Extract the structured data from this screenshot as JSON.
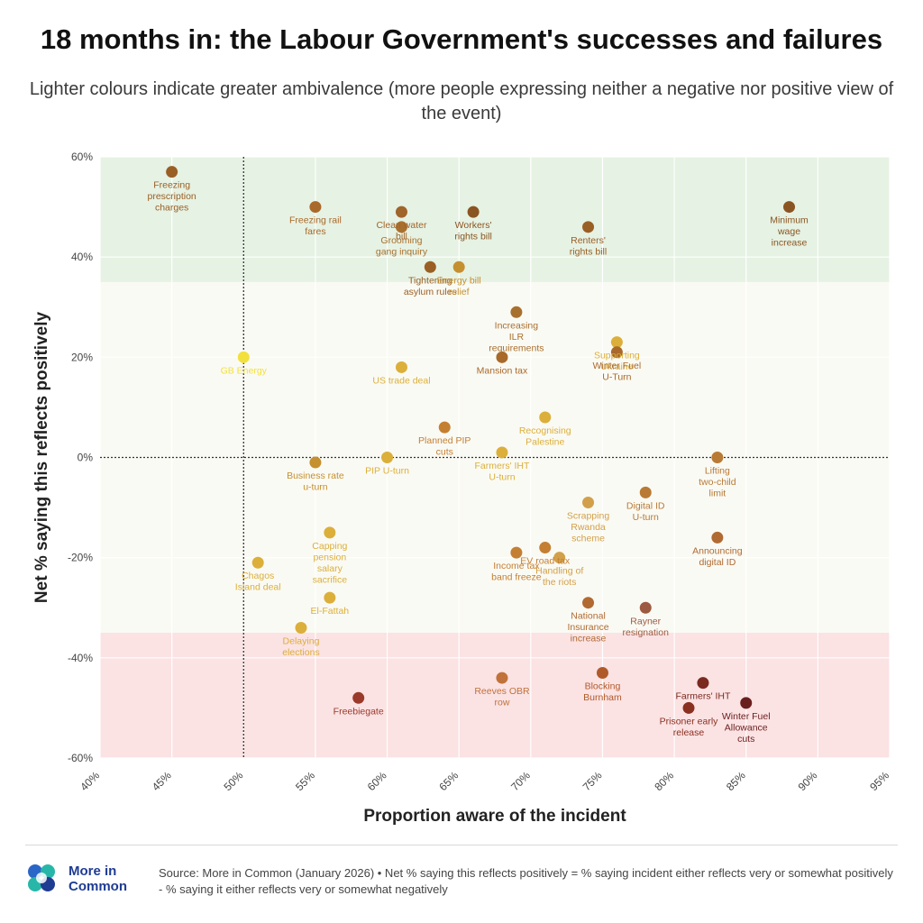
{
  "header": {
    "title": "18 months in: the Labour Government's successes and failures",
    "subtitle": "Lighter colours indicate greater ambivalence (more people expressing neither a negative nor positive view of the event)"
  },
  "footer": {
    "logo_text_line1": "More in",
    "logo_text_line2": "Common",
    "source": "Source: More in Common (January 2026) • Net % saying this reflects positively = % saying incident either reflects very or somewhat positively - % saying it either reflects very or somewhat negatively"
  },
  "colors": {
    "positive_band": "#e6f2e3",
    "neutral_band": "#fafaf4",
    "negative_band": "#fbe2e3",
    "brand": "#1f3c93"
  },
  "chart_data": {
    "type": "scatter",
    "xlabel": "Proportion aware of the incident",
    "ylabel": "Net % saying this reflects positively",
    "xlim": [
      40,
      95
    ],
    "ylim": [
      -60,
      60
    ],
    "x_ticks": [
      "40%",
      "45%",
      "50%",
      "55%",
      "60%",
      "65%",
      "70%",
      "75%",
      "80%",
      "85%",
      "90%",
      "95%"
    ],
    "y_ticks": [
      "60%",
      "40%",
      "20%",
      "0%",
      "-20%",
      "-40%",
      "-60%"
    ],
    "bands": [
      {
        "name": "positive",
        "from": 35,
        "to": 60
      },
      {
        "name": "neutral",
        "from": -35,
        "to": 35
      },
      {
        "name": "negative",
        "from": -60,
        "to": -35
      }
    ],
    "reference_lines": {
      "x": 50,
      "y": 0
    },
    "grid": true,
    "points": [
      {
        "label": "Freezing prescription charges",
        "lines": [
          "Freezing",
          "prescription",
          "charges"
        ],
        "x": 45,
        "y": 57,
        "color": "#9a5f25"
      },
      {
        "label": "Freezing rail fares",
        "lines": [
          "Freezing rail",
          "fares"
        ],
        "x": 55,
        "y": 50,
        "color": "#a8692a"
      },
      {
        "label": "Clean water bill",
        "lines": [
          "Clean water",
          "bill"
        ],
        "x": 61,
        "y": 49,
        "color": "#a0652a"
      },
      {
        "label": "Grooming gang inquiry",
        "lines": [
          "Grooming",
          "gang inquiry"
        ],
        "x": 61,
        "y": 46,
        "color": "#a8702e"
      },
      {
        "label": "Workers' rights bill",
        "lines": [
          "Workers'",
          "rights bill"
        ],
        "x": 66,
        "y": 49,
        "color": "#8a5522"
      },
      {
        "label": "Renters' rights bill",
        "lines": [
          "Renters'",
          "rights bill"
        ],
        "x": 74,
        "y": 46,
        "color": "#9a5f25"
      },
      {
        "label": "Minimum wage increase",
        "lines": [
          "Minimum",
          "wage",
          "increase"
        ],
        "x": 88,
        "y": 50,
        "color": "#8a5522"
      },
      {
        "label": "Tightening asylum rules",
        "lines": [
          "Tightening",
          "asylum rules"
        ],
        "x": 63,
        "y": 38,
        "color": "#9a5f25"
      },
      {
        "label": "Energy bill relief",
        "lines": [
          "Energy bill",
          "relief"
        ],
        "x": 65,
        "y": 38,
        "color": "#c49030"
      },
      {
        "label": "Increasing ILR requirements",
        "lines": [
          "Increasing",
          "ILR",
          "requirements"
        ],
        "x": 69,
        "y": 29,
        "color": "#a8702e"
      },
      {
        "label": "Mansion tax",
        "lines": [
          "Mansion tax"
        ],
        "x": 68,
        "y": 20,
        "color": "#a8692a"
      },
      {
        "label": "Supporting Ukraine",
        "lines": [
          "Supporting",
          "Ukraine"
        ],
        "x": 76,
        "y": 23,
        "color": "#dbaf3a"
      },
      {
        "label": "Winter Fuel U-Turn",
        "lines": [
          "Winter Fuel",
          "U-Turn"
        ],
        "x": 76,
        "y": 21,
        "color": "#a8692a"
      },
      {
        "label": "GB Energy",
        "lines": [
          "GB Energy"
        ],
        "x": 50,
        "y": 20,
        "color": "#f2e03c"
      },
      {
        "label": "US trade deal",
        "lines": [
          "US trade deal"
        ],
        "x": 61,
        "y": 18,
        "color": "#dbaf3a"
      },
      {
        "label": "Planned PIP cuts",
        "lines": [
          "Planned PIP",
          "cuts"
        ],
        "x": 64,
        "y": 6,
        "color": "#c47f33"
      },
      {
        "label": "Recognising Palestine",
        "lines": [
          "Recognising",
          "Palestine"
        ],
        "x": 71,
        "y": 8,
        "color": "#dbaf3a"
      },
      {
        "label": "Farmers' IHT U-turn",
        "lines": [
          "Farmers' IHT",
          "U-turn"
        ],
        "x": 68,
        "y": 1,
        "color": "#dbaf3a"
      },
      {
        "label": "Business rate u-turn",
        "lines": [
          "Business rate",
          "u-turn"
        ],
        "x": 55,
        "y": -1,
        "color": "#c49030"
      },
      {
        "label": "PIP U-turn",
        "lines": [
          "PIP U-turn"
        ],
        "x": 60,
        "y": 0,
        "color": "#dbaf3a"
      },
      {
        "label": "Lifting two-child limit",
        "lines": [
          "Lifting",
          "two-child",
          "limit"
        ],
        "x": 83,
        "y": 0,
        "color": "#b87a35"
      },
      {
        "label": "Scrapping Rwanda scheme",
        "lines": [
          "Scrapping",
          "Rwanda",
          "scheme"
        ],
        "x": 74,
        "y": -9,
        "color": "#d2a04a"
      },
      {
        "label": "Digital ID U-turn",
        "lines": [
          "Digital ID",
          "U-turn"
        ],
        "x": 78,
        "y": -7,
        "color": "#b87a35"
      },
      {
        "label": "Capping pension salary sacrifice",
        "lines": [
          "Capping",
          "pension",
          "salary",
          "sacrifice"
        ],
        "x": 56,
        "y": -15,
        "color": "#dbaf3a"
      },
      {
        "label": "Chagos Island deal",
        "lines": [
          "Chagos",
          "Island deal"
        ],
        "x": 51,
        "y": -21,
        "color": "#dbaf3a"
      },
      {
        "label": "Income tax band freeze",
        "lines": [
          "Income tax",
          "band freeze"
        ],
        "x": 69,
        "y": -19,
        "color": "#c47f33"
      },
      {
        "label": "EV road tax",
        "lines": [
          "EV road tax"
        ],
        "x": 71,
        "y": -18,
        "color": "#c47f33"
      },
      {
        "label": "Handling of the riots",
        "lines": [
          "Handling of",
          "the riots"
        ],
        "x": 72,
        "y": -20,
        "color": "#d2a04a"
      },
      {
        "label": "Announcing digital ID",
        "lines": [
          "Announcing",
          "digital ID"
        ],
        "x": 83,
        "y": -16,
        "color": "#b06a32"
      },
      {
        "label": "El-Fattah",
        "lines": [
          "El-Fattah"
        ],
        "x": 56,
        "y": -28,
        "color": "#dbaf3a"
      },
      {
        "label": "National Insurance increase",
        "lines": [
          "National",
          "Insurance",
          "increase"
        ],
        "x": 74,
        "y": -29,
        "color": "#b06a32"
      },
      {
        "label": "Rayner resignation",
        "lines": [
          "Rayner",
          "resignation"
        ],
        "x": 78,
        "y": -30,
        "color": "#9c5a40"
      },
      {
        "label": "Delaying elections",
        "lines": [
          "Delaying",
          "elections"
        ],
        "x": 54,
        "y": -34,
        "color": "#dbaf3a"
      },
      {
        "label": "Reeves OBR row",
        "lines": [
          "Reeves OBR",
          "row"
        ],
        "x": 68,
        "y": -44,
        "color": "#c0723a"
      },
      {
        "label": "Blocking Burnham",
        "lines": [
          "Blocking",
          "Burnham"
        ],
        "x": 75,
        "y": -43,
        "color": "#b05a2a"
      },
      {
        "label": "Freebiegate",
        "lines": [
          "Freebiegate"
        ],
        "x": 58,
        "y": -48,
        "color": "#9a3a2a"
      },
      {
        "label": "Farmers' IHT",
        "lines": [
          "Farmers' IHT"
        ],
        "x": 82,
        "y": -45,
        "color": "#7a2a1f"
      },
      {
        "label": "Prisoner early release",
        "lines": [
          "Prisoner early",
          "release"
        ],
        "x": 81,
        "y": -50,
        "color": "#8a3020"
      },
      {
        "label": "Winter Fuel Allowance cuts",
        "lines": [
          "Winter Fuel",
          "Allowance",
          "cuts"
        ],
        "x": 85,
        "y": -49,
        "color": "#6a1f1f"
      }
    ]
  }
}
